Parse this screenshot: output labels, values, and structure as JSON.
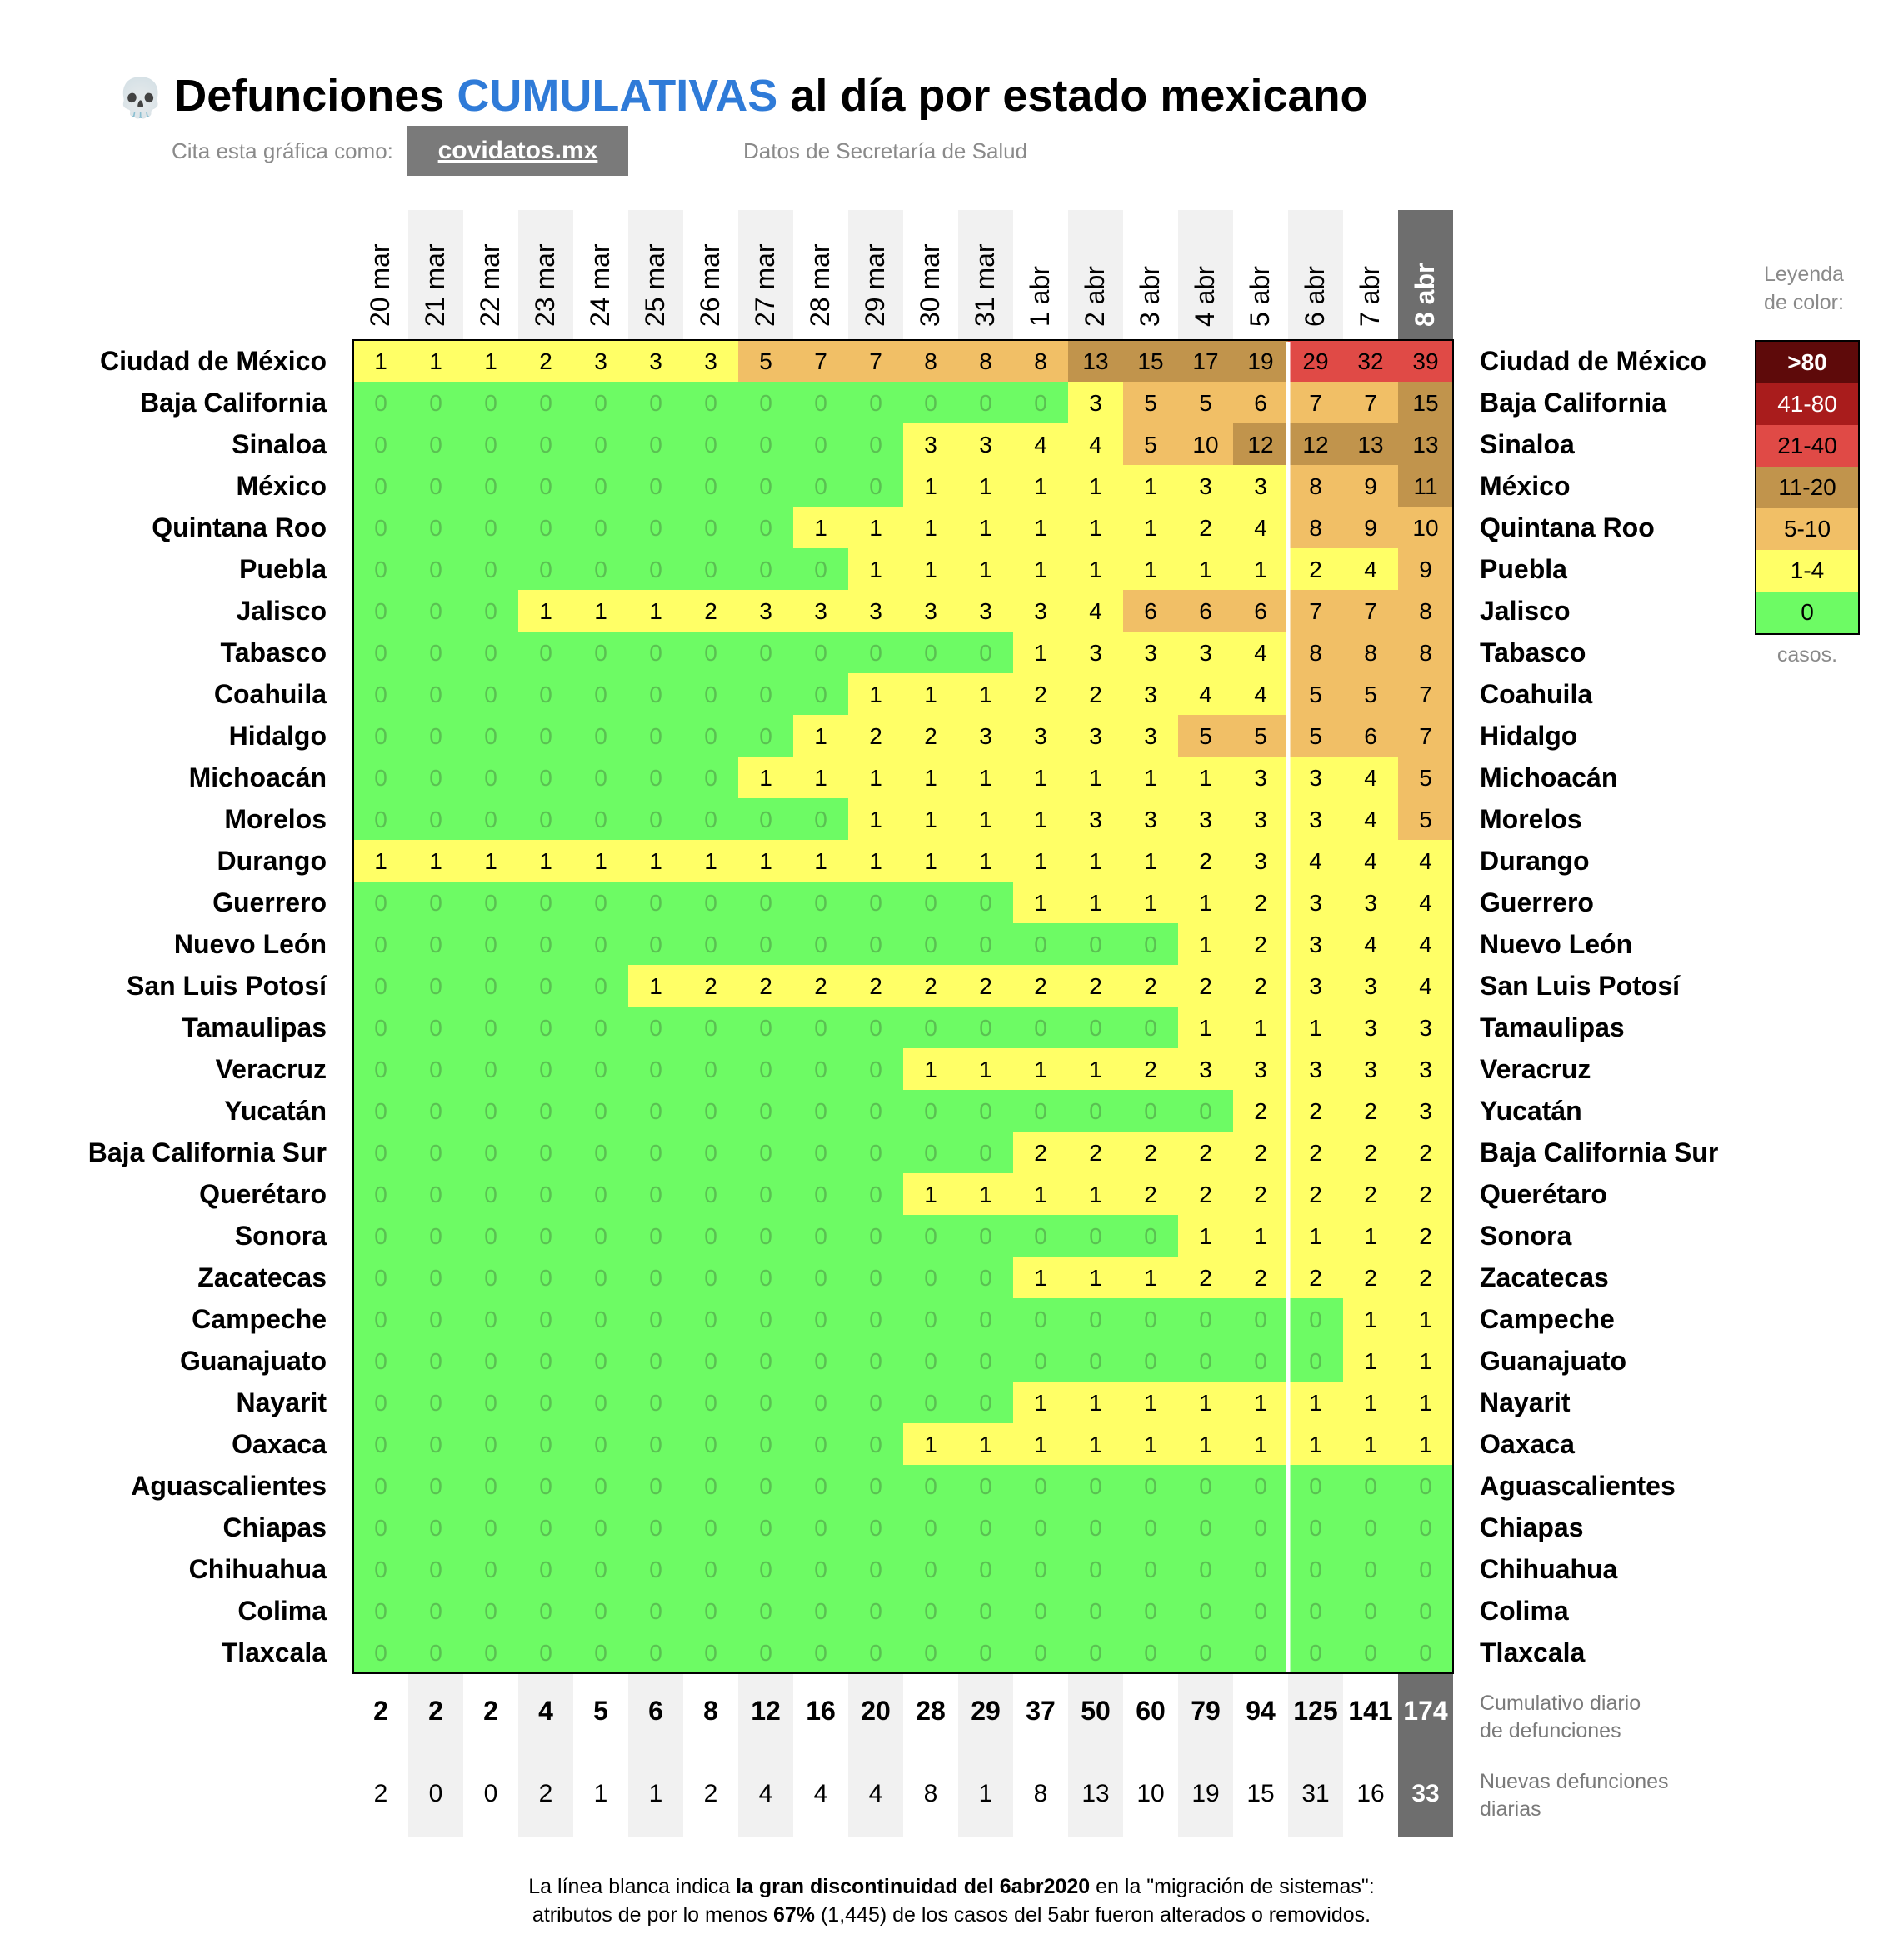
{
  "title": {
    "icon": "skull-icon",
    "glyph": "💀",
    "part1": "Defunciones ",
    "accent": "CUMULATIVAS",
    "part2": " al día por estado mexicano",
    "accent_color": "#2f7bd8"
  },
  "cite": {
    "label": "Cita esta gráfica como:",
    "button": "covidatos.mx"
  },
  "source": "Datos de Secretaría de Salud",
  "legend": {
    "title_line1": "Leyenda",
    "title_line2": "de color:",
    "unit": "casos.",
    "items": [
      {
        "label": ">80",
        "color": "#5e0a0a",
        "text_color": "#ffffff"
      },
      {
        "label": "41-80",
        "color": "#a91c1c",
        "text_color": "#ffffff"
      },
      {
        "label": "21-40",
        "color": "#e04a46",
        "text_color": "#000000"
      },
      {
        "label": "11-20",
        "color": "#c1944c",
        "text_color": "#000000"
      },
      {
        "label": "5-10",
        "color": "#f1bf66",
        "text_color": "#000000"
      },
      {
        "label": "1-4",
        "color": "#ffff66",
        "text_color": "#000000"
      },
      {
        "label": "0",
        "color": "#6dfb64",
        "text_color": "#000000"
      }
    ]
  },
  "chart_data": {
    "type": "heatmap",
    "x": [
      "20 mar",
      "21 mar",
      "22 mar",
      "23 mar",
      "24 mar",
      "25 mar",
      "26 mar",
      "27 mar",
      "28 mar",
      "29 mar",
      "30 mar",
      "31 mar",
      "1 abr",
      "2 abr",
      "3 abr",
      "4 abr",
      "5 abr",
      "6 abr",
      "7 abr",
      "8 abr"
    ],
    "highlight_column": "8 abr",
    "discontinuity_after": "5 abr",
    "rows": [
      {
        "state": "Ciudad de México",
        "values": [
          1,
          1,
          1,
          2,
          3,
          3,
          3,
          5,
          7,
          7,
          8,
          8,
          8,
          13,
          15,
          17,
          19,
          29,
          32,
          39
        ]
      },
      {
        "state": "Baja California",
        "values": [
          0,
          0,
          0,
          0,
          0,
          0,
          0,
          0,
          0,
          0,
          0,
          0,
          0,
          3,
          5,
          5,
          6,
          7,
          7,
          15
        ]
      },
      {
        "state": "Sinaloa",
        "values": [
          0,
          0,
          0,
          0,
          0,
          0,
          0,
          0,
          0,
          0,
          3,
          3,
          4,
          4,
          5,
          10,
          12,
          12,
          13,
          13
        ]
      },
      {
        "state": "México",
        "values": [
          0,
          0,
          0,
          0,
          0,
          0,
          0,
          0,
          0,
          0,
          1,
          1,
          1,
          1,
          1,
          3,
          3,
          8,
          9,
          11
        ]
      },
      {
        "state": "Quintana Roo",
        "values": [
          0,
          0,
          0,
          0,
          0,
          0,
          0,
          0,
          1,
          1,
          1,
          1,
          1,
          1,
          1,
          2,
          4,
          8,
          9,
          10
        ]
      },
      {
        "state": "Puebla",
        "values": [
          0,
          0,
          0,
          0,
          0,
          0,
          0,
          0,
          0,
          1,
          1,
          1,
          1,
          1,
          1,
          1,
          1,
          2,
          4,
          9
        ]
      },
      {
        "state": "Jalisco",
        "values": [
          0,
          0,
          0,
          1,
          1,
          1,
          2,
          3,
          3,
          3,
          3,
          3,
          3,
          4,
          6,
          6,
          6,
          7,
          7,
          8
        ]
      },
      {
        "state": "Tabasco",
        "values": [
          0,
          0,
          0,
          0,
          0,
          0,
          0,
          0,
          0,
          0,
          0,
          0,
          1,
          3,
          3,
          3,
          4,
          8,
          8,
          8
        ]
      },
      {
        "state": "Coahuila",
        "values": [
          0,
          0,
          0,
          0,
          0,
          0,
          0,
          0,
          0,
          1,
          1,
          1,
          2,
          2,
          3,
          4,
          4,
          5,
          5,
          7
        ]
      },
      {
        "state": "Hidalgo",
        "values": [
          0,
          0,
          0,
          0,
          0,
          0,
          0,
          0,
          1,
          2,
          2,
          3,
          3,
          3,
          3,
          5,
          5,
          5,
          6,
          7
        ]
      },
      {
        "state": "Michoacán",
        "values": [
          0,
          0,
          0,
          0,
          0,
          0,
          0,
          1,
          1,
          1,
          1,
          1,
          1,
          1,
          1,
          1,
          3,
          3,
          4,
          5
        ]
      },
      {
        "state": "Morelos",
        "values": [
          0,
          0,
          0,
          0,
          0,
          0,
          0,
          0,
          0,
          1,
          1,
          1,
          1,
          3,
          3,
          3,
          3,
          3,
          4,
          5
        ]
      },
      {
        "state": "Durango",
        "values": [
          1,
          1,
          1,
          1,
          1,
          1,
          1,
          1,
          1,
          1,
          1,
          1,
          1,
          1,
          1,
          2,
          3,
          4,
          4,
          4
        ]
      },
      {
        "state": "Guerrero",
        "values": [
          0,
          0,
          0,
          0,
          0,
          0,
          0,
          0,
          0,
          0,
          0,
          0,
          1,
          1,
          1,
          1,
          2,
          3,
          3,
          4
        ]
      },
      {
        "state": "Nuevo León",
        "values": [
          0,
          0,
          0,
          0,
          0,
          0,
          0,
          0,
          0,
          0,
          0,
          0,
          0,
          0,
          0,
          1,
          2,
          3,
          4,
          4
        ]
      },
      {
        "state": "San Luis Potosí",
        "values": [
          0,
          0,
          0,
          0,
          0,
          1,
          2,
          2,
          2,
          2,
          2,
          2,
          2,
          2,
          2,
          2,
          2,
          3,
          3,
          4
        ]
      },
      {
        "state": "Tamaulipas",
        "values": [
          0,
          0,
          0,
          0,
          0,
          0,
          0,
          0,
          0,
          0,
          0,
          0,
          0,
          0,
          0,
          1,
          1,
          1,
          3,
          3
        ]
      },
      {
        "state": "Veracruz",
        "values": [
          0,
          0,
          0,
          0,
          0,
          0,
          0,
          0,
          0,
          0,
          1,
          1,
          1,
          1,
          2,
          3,
          3,
          3,
          3,
          3
        ]
      },
      {
        "state": "Yucatán",
        "values": [
          0,
          0,
          0,
          0,
          0,
          0,
          0,
          0,
          0,
          0,
          0,
          0,
          0,
          0,
          0,
          0,
          2,
          2,
          2,
          3
        ]
      },
      {
        "state": "Baja California Sur",
        "values": [
          0,
          0,
          0,
          0,
          0,
          0,
          0,
          0,
          0,
          0,
          0,
          0,
          2,
          2,
          2,
          2,
          2,
          2,
          2,
          2
        ]
      },
      {
        "state": "Querétaro",
        "values": [
          0,
          0,
          0,
          0,
          0,
          0,
          0,
          0,
          0,
          0,
          1,
          1,
          1,
          1,
          2,
          2,
          2,
          2,
          2,
          2
        ]
      },
      {
        "state": "Sonora",
        "values": [
          0,
          0,
          0,
          0,
          0,
          0,
          0,
          0,
          0,
          0,
          0,
          0,
          0,
          0,
          0,
          1,
          1,
          1,
          1,
          2
        ]
      },
      {
        "state": "Zacatecas",
        "values": [
          0,
          0,
          0,
          0,
          0,
          0,
          0,
          0,
          0,
          0,
          0,
          0,
          1,
          1,
          1,
          2,
          2,
          2,
          2,
          2
        ]
      },
      {
        "state": "Campeche",
        "values": [
          0,
          0,
          0,
          0,
          0,
          0,
          0,
          0,
          0,
          0,
          0,
          0,
          0,
          0,
          0,
          0,
          0,
          0,
          1,
          1
        ]
      },
      {
        "state": "Guanajuato",
        "values": [
          0,
          0,
          0,
          0,
          0,
          0,
          0,
          0,
          0,
          0,
          0,
          0,
          0,
          0,
          0,
          0,
          0,
          0,
          1,
          1
        ]
      },
      {
        "state": "Nayarit",
        "values": [
          0,
          0,
          0,
          0,
          0,
          0,
          0,
          0,
          0,
          0,
          0,
          0,
          1,
          1,
          1,
          1,
          1,
          1,
          1,
          1
        ]
      },
      {
        "state": "Oaxaca",
        "values": [
          0,
          0,
          0,
          0,
          0,
          0,
          0,
          0,
          0,
          0,
          1,
          1,
          1,
          1,
          1,
          1,
          1,
          1,
          1,
          1
        ]
      },
      {
        "state": "Aguascalientes",
        "values": [
          0,
          0,
          0,
          0,
          0,
          0,
          0,
          0,
          0,
          0,
          0,
          0,
          0,
          0,
          0,
          0,
          0,
          0,
          0,
          0
        ]
      },
      {
        "state": "Chiapas",
        "values": [
          0,
          0,
          0,
          0,
          0,
          0,
          0,
          0,
          0,
          0,
          0,
          0,
          0,
          0,
          0,
          0,
          0,
          0,
          0,
          0
        ]
      },
      {
        "state": "Chihuahua",
        "values": [
          0,
          0,
          0,
          0,
          0,
          0,
          0,
          0,
          0,
          0,
          0,
          0,
          0,
          0,
          0,
          0,
          0,
          0,
          0,
          0
        ]
      },
      {
        "state": "Colima",
        "values": [
          0,
          0,
          0,
          0,
          0,
          0,
          0,
          0,
          0,
          0,
          0,
          0,
          0,
          0,
          0,
          0,
          0,
          0,
          0,
          0
        ]
      },
      {
        "state": "Tlaxcala",
        "values": [
          0,
          0,
          0,
          0,
          0,
          0,
          0,
          0,
          0,
          0,
          0,
          0,
          0,
          0,
          0,
          0,
          0,
          0,
          0,
          0
        ]
      }
    ],
    "cumulative": {
      "label_line1": "Cumulativo diario",
      "label_line2": "de defunciones",
      "values": [
        2,
        2,
        2,
        4,
        5,
        6,
        8,
        12,
        16,
        20,
        28,
        29,
        37,
        50,
        60,
        79,
        94,
        125,
        141,
        174
      ]
    },
    "daily_new": {
      "label_line1": "Nuevas defunciones",
      "label_line2": "diarias",
      "values": [
        2,
        0,
        0,
        2,
        1,
        1,
        2,
        4,
        4,
        4,
        8,
        1,
        8,
        13,
        10,
        19,
        15,
        31,
        16,
        33
      ]
    }
  },
  "note": {
    "line1_a": "La línea blanca indica ",
    "line1_b": "la gran discontinuidad del 6abr2020",
    "line1_c": " en la \"migración de sistemas\":",
    "line2_a": "atributos de por lo menos ",
    "line2_b": "67%",
    "line2_c": " (1,445) de los casos del 5abr fueron alterados o removidos."
  }
}
